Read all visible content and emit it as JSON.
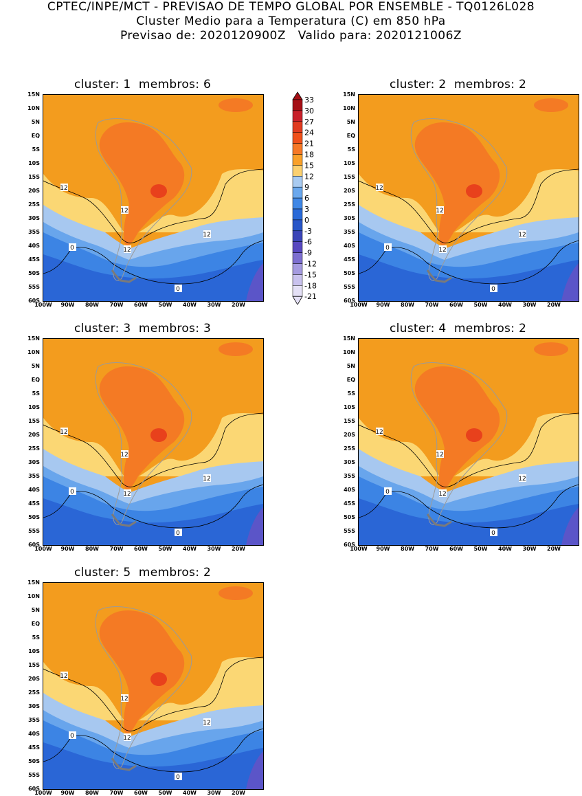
{
  "header": {
    "line1": "CPTEC/INPE/MCT - PREVISAO DE TEMPO GLOBAL POR ENSEMBLE - TQ0126L028",
    "line2": "Cluster Medio para a Temperatura (C) em 850 hPa",
    "line3": "Previsao de: 2020120900Z   Valido para: 2020121006Z"
  },
  "panels": [
    {
      "title": "cluster: 1  membros: 6"
    },
    {
      "title": "cluster: 2  membros: 2"
    },
    {
      "title": "cluster: 3  membros: 3"
    },
    {
      "title": "cluster: 4  membros: 2"
    },
    {
      "title": "cluster: 5  membros: 2"
    }
  ],
  "lat_labels": [
    "15N",
    "10N",
    "5N",
    "EQ",
    "5S",
    "10S",
    "15S",
    "20S",
    "25S",
    "30S",
    "35S",
    "40S",
    "45S",
    "50S",
    "55S",
    "60S"
  ],
  "lon_labels": [
    "100W",
    "90W",
    "80W",
    "70W",
    "60W",
    "50W",
    "40W",
    "30W",
    "20W"
  ],
  "contour_labels": {
    "twelve": "12",
    "zero": "0"
  },
  "colorbar": {
    "labels": [
      "33",
      "30",
      "27",
      "24",
      "21",
      "18",
      "15",
      "12",
      "9",
      "6",
      "3",
      "0",
      "-3",
      "-6",
      "-9",
      "-12",
      "-15",
      "-18",
      "-21"
    ],
    "colors": [
      "#a50f15",
      "#c8202a",
      "#e03a1f",
      "#f0501a",
      "#f67826",
      "#f9a02a",
      "#fbd070",
      "#a9cbf1",
      "#6aa8ee",
      "#3f87e6",
      "#2a6ad8",
      "#2856c8",
      "#3b45b8",
      "#5848c0",
      "#7d6fd0",
      "#a59be0",
      "#c9c2ee",
      "#e4e0f6"
    ],
    "top_color": "#a50f15",
    "bottom_color": "#e4e0f6"
  },
  "palette": {
    "orange_dark": "#f39c1e",
    "orange_red": "#f47a24",
    "red": "#e8411c",
    "yellow": "#fbd774",
    "blue_light": "#a7c8f0",
    "blue_mid": "#68a5ec",
    "blue": "#3c84e4",
    "blue_dark": "#2a66d6",
    "purple": "#5b55c8"
  }
}
